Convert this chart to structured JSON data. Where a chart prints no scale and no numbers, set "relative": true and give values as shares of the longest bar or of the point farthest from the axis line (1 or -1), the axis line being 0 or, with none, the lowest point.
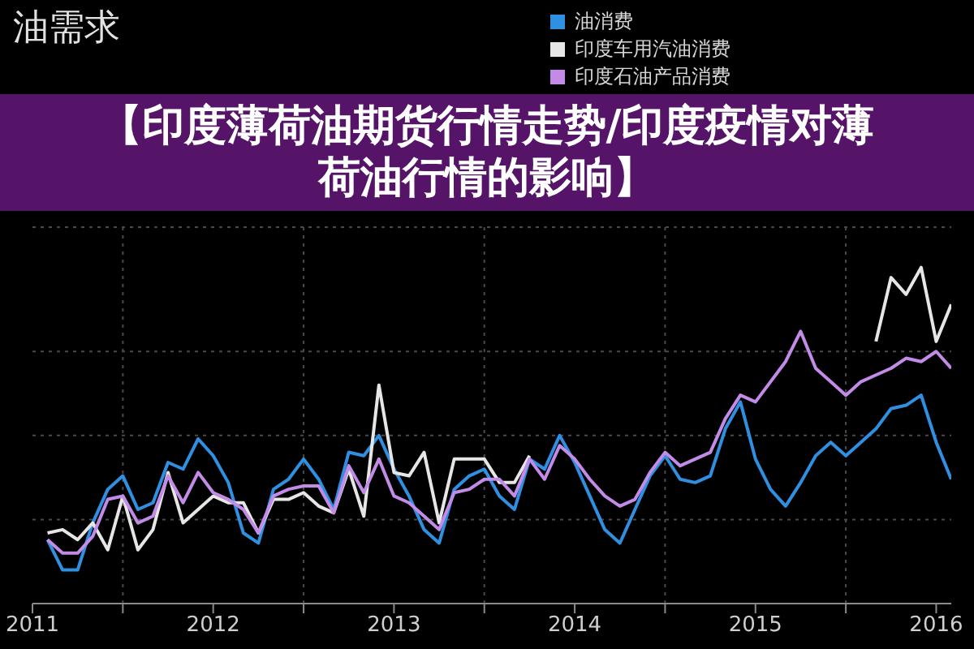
{
  "chart_data": {
    "type": "line",
    "title": "油需求",
    "annotations": [
      "【印度薄荷油期货行情走势/印度疫情对薄荷油行情的影响】"
    ],
    "relative": true,
    "x": [
      "2011-08",
      "2011-09",
      "2011-10",
      "2011-11",
      "2011-12",
      "2012-01",
      "2012-02",
      "2012-03",
      "2012-04",
      "2012-05",
      "2012-06",
      "2012-07",
      "2012-08",
      "2012-09",
      "2012-10",
      "2012-11",
      "2012-12",
      "2013-01",
      "2013-02",
      "2013-03",
      "2013-04",
      "2013-05",
      "2013-06",
      "2013-07",
      "2013-08",
      "2013-09",
      "2013-10",
      "2013-11",
      "2013-12",
      "2014-01",
      "2014-02",
      "2014-03",
      "2014-04",
      "2014-05",
      "2014-06",
      "2014-07",
      "2014-08",
      "2014-09",
      "2014-10",
      "2014-11",
      "2014-12",
      "2015-01",
      "2015-02",
      "2015-03",
      "2015-04",
      "2015-05",
      "2015-06",
      "2015-07",
      "2015-08",
      "2015-09",
      "2015-10",
      "2015-11",
      "2015-12",
      "2016-01",
      "2016-02",
      "2016-03",
      "2016-04",
      "2016-05",
      "2016-06",
      "2016-07",
      "2016-08"
    ],
    "series": [
      {
        "name": "油消费",
        "color": "#2f8fe0",
        "values": [
          0.19,
          0.1,
          0.1,
          0.24,
          0.34,
          0.38,
          0.28,
          0.3,
          0.42,
          0.4,
          0.49,
          0.44,
          0.36,
          0.21,
          0.18,
          0.34,
          0.37,
          0.43,
          0.37,
          0.28,
          0.45,
          0.44,
          0.5,
          0.4,
          0.32,
          0.22,
          0.18,
          0.34,
          0.38,
          0.4,
          0.32,
          0.28,
          0.43,
          0.4,
          0.5,
          0.42,
          0.32,
          0.22,
          0.18,
          0.28,
          0.38,
          0.44,
          0.37,
          0.36,
          0.38,
          0.52,
          0.6,
          0.43,
          0.34,
          0.29,
          0.36,
          0.44,
          0.48,
          0.44,
          0.48,
          0.52,
          0.58,
          0.59,
          0.62,
          0.48,
          0.37
        ]
      },
      {
        "name": "印度车用汽油消费",
        "color": "#e6e6e6",
        "values": [
          0.21,
          0.22,
          0.19,
          0.24,
          0.16,
          0.32,
          0.16,
          0.22,
          0.39,
          0.24,
          0.28,
          0.32,
          0.3,
          0.3,
          0.21,
          0.31,
          0.31,
          0.33,
          0.29,
          0.27,
          0.4,
          0.26,
          0.65,
          0.39,
          0.38,
          0.45,
          0.24,
          0.43,
          0.43,
          0.43,
          0.36,
          0.36,
          0.44,
          null,
          null,
          null,
          null,
          null,
          null,
          null,
          null,
          null,
          null,
          null,
          null,
          null,
          null,
          null,
          null,
          null,
          null,
          null,
          null,
          null,
          null,
          0.78,
          0.97,
          0.92,
          1.0,
          0.78,
          0.89
        ]
      },
      {
        "name": "印度石油产品消费",
        "color": "#c38be8",
        "values": [
          0.19,
          0.15,
          0.15,
          0.2,
          0.31,
          0.32,
          0.24,
          0.26,
          0.38,
          0.3,
          0.39,
          0.33,
          0.31,
          0.28,
          0.21,
          0.32,
          0.34,
          0.35,
          0.35,
          0.27,
          0.41,
          0.33,
          0.43,
          0.32,
          0.3,
          0.26,
          0.22,
          0.33,
          0.34,
          0.37,
          0.37,
          0.32,
          0.43,
          0.37,
          0.47,
          0.43,
          0.37,
          0.32,
          0.29,
          0.31,
          0.39,
          0.45,
          0.41,
          0.43,
          0.45,
          0.55,
          0.62,
          0.6,
          0.66,
          0.72,
          0.81,
          0.7,
          0.66,
          0.62,
          0.66,
          0.68,
          0.7,
          0.73,
          0.72,
          0.75,
          0.7
        ]
      }
    ],
    "xlim": [
      "2011-07",
      "2016-08"
    ],
    "xticks": [
      {
        "value": "2011-07",
        "label": "2011"
      },
      {
        "value": "2012-01",
        "label": null
      },
      {
        "value": "2012-07",
        "label": "2012"
      },
      {
        "value": "2013-01",
        "label": null
      },
      {
        "value": "2013-07",
        "label": "2013"
      },
      {
        "value": "2014-01",
        "label": null
      },
      {
        "value": "2014-07",
        "label": "2014"
      },
      {
        "value": "2015-01",
        "label": null
      },
      {
        "value": "2015-07",
        "label": "2015"
      },
      {
        "value": "2016-01",
        "label": null
      },
      {
        "value": "2016-07",
        "label": "2016"
      }
    ],
    "grid": true,
    "legend": "top right"
  }
}
